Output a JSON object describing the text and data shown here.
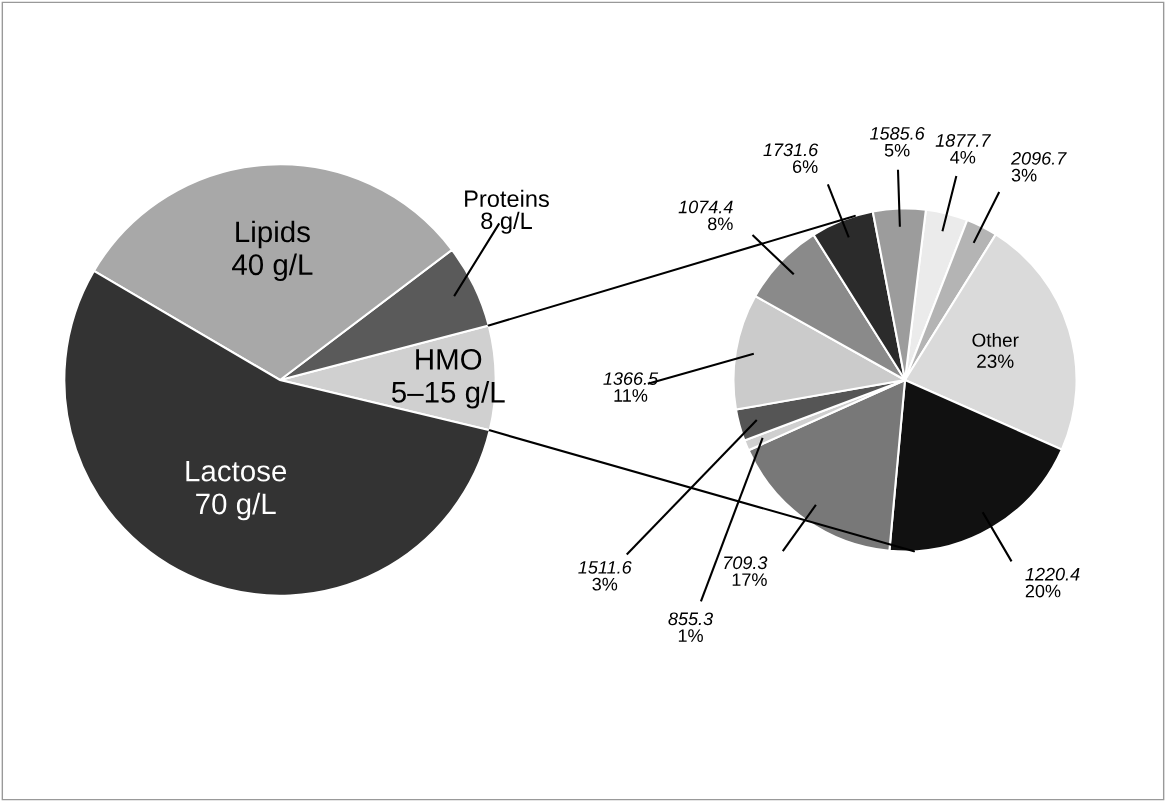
{
  "chart_data": [
    {
      "type": "pie",
      "categories": [
        "HMO",
        "Proteins",
        "Lipids",
        "Lactose"
      ],
      "values": [
        10,
        8,
        40,
        70
      ],
      "value_labels": [
        "5–15 g/L",
        "8 g/L",
        "40 g/L",
        "70 g/L"
      ],
      "colors": [
        "#d0d0d0",
        "#5a5a5a",
        "#a8a8a8",
        "#333333"
      ]
    },
    {
      "type": "pie",
      "categories": [
        "1877.7",
        "2096.7",
        "Other",
        "1220.4",
        "709.3",
        "855.3",
        "1511.6",
        "1366.5",
        "1074.4",
        "1731.6",
        "1585.6"
      ],
      "values": [
        4,
        3,
        23,
        20,
        17,
        1,
        3,
        11,
        8,
        6,
        5
      ],
      "value_labels": [
        "4%",
        "3%",
        "23%",
        "20%",
        "17%",
        "1%",
        "3%",
        "11%",
        "8%",
        "6%",
        "5%"
      ],
      "colors": [
        "#ebebeb",
        "#b4b4b4",
        "#dadada",
        "#111111",
        "#787878",
        "#cfcfcf",
        "#555555",
        "#cbcbcb",
        "#8a8a8a",
        "#2b2b2b",
        "#9c9c9c"
      ]
    }
  ]
}
